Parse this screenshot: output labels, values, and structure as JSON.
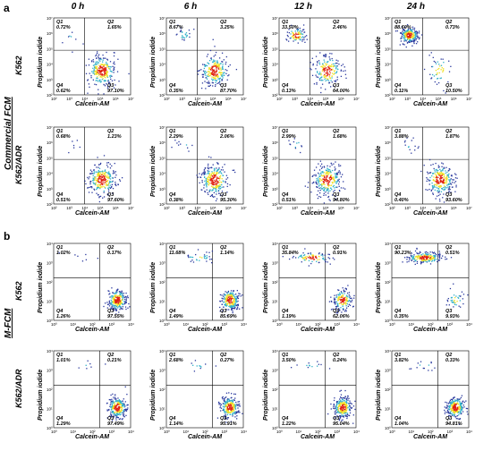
{
  "figure": {
    "panel_a": "a",
    "panel_b": "b",
    "group_a_label": "Commercial FCM",
    "group_b_label": "M-FCM",
    "columns": [
      "0 h",
      "6 h",
      "12 h",
      "24 h"
    ],
    "x_axis_label": "Calcein-AM",
    "y_axis_label": "Propidium iodide",
    "rows": [
      {
        "label": "K562",
        "group": "a",
        "plots": [
          {
            "q1": "0.72%",
            "q2": "1.65%",
            "q3": "97.10%",
            "q4": "0.62%"
          },
          {
            "q1": "8.67%",
            "q2": "3.25%",
            "q3": "87.70%",
            "q4": "0.35%"
          },
          {
            "q1": "33.50%",
            "q2": "2.46%",
            "q3": "64.00%",
            "q4": "0.13%"
          },
          {
            "q1": "88.60%",
            "q2": "0.73%",
            "q3": "10.50%",
            "q4": "0.11%"
          }
        ]
      },
      {
        "label": "K562/ADR",
        "group": "a",
        "plots": [
          {
            "q1": "0.68%",
            "q2": "1.23%",
            "q3": "97.60%",
            "q4": "0.51%"
          },
          {
            "q1": "2.29%",
            "q2": "2.06%",
            "q3": "95.30%",
            "q4": "0.38%"
          },
          {
            "q1": "2.99%",
            "q2": "1.68%",
            "q3": "94.80%",
            "q4": "0.51%"
          },
          {
            "q1": "3.88%",
            "q2": "1.87%",
            "q3": "93.60%",
            "q4": "0.40%"
          }
        ]
      },
      {
        "label": "K562",
        "group": "b",
        "plots": [
          {
            "q1": "1.02%",
            "q2": "0.17%",
            "q3": "97.55%",
            "q4": "1.26%"
          },
          {
            "q1": "11.68%",
            "q2": "1.14%",
            "q3": "85.69%",
            "q4": "1.49%"
          },
          {
            "q1": "35.84%",
            "q2": "0.91%",
            "q3": "62.06%",
            "q4": "1.19%"
          },
          {
            "q1": "90.23%",
            "q2": "0.51%",
            "q3": "9.93%",
            "q4": "0.35%"
          }
        ]
      },
      {
        "label": "K562/ADR",
        "group": "b",
        "plots": [
          {
            "q1": "1.01%",
            "q2": "0.21%",
            "q3": "97.49%",
            "q4": "1.29%"
          },
          {
            "q1": "2.68%",
            "q2": "0.27%",
            "q3": "95.91%",
            "q4": "1.14%"
          },
          {
            "q1": "3.50%",
            "q2": "0.24%",
            "q3": "95.04%",
            "q4": "1.22%"
          },
          {
            "q1": "3.82%",
            "q2": "0.33%",
            "q3": "94.81%",
            "q4": "1.04%"
          }
        ]
      }
    ],
    "a_x_ticks": [
      "10²",
      "10³",
      "10⁴",
      "10⁵",
      "10⁶",
      "10⁷"
    ],
    "a_y_ticks": [
      "10⁷",
      "10⁶",
      "10⁵",
      "10⁴",
      "10³",
      "10²"
    ],
    "b_x_ticks": [
      "10⁰",
      "10¹",
      "10²",
      "10³",
      "10⁴"
    ],
    "b_y_ticks": [
      "10⁴",
      "10³",
      "10²",
      "10¹",
      "10⁰"
    ],
    "colors": {
      "low": "#2b3a9e",
      "mid": "#2fb0c8",
      "high": "#f0e020",
      "peak": "#e02010",
      "axis": "#000000"
    }
  }
}
